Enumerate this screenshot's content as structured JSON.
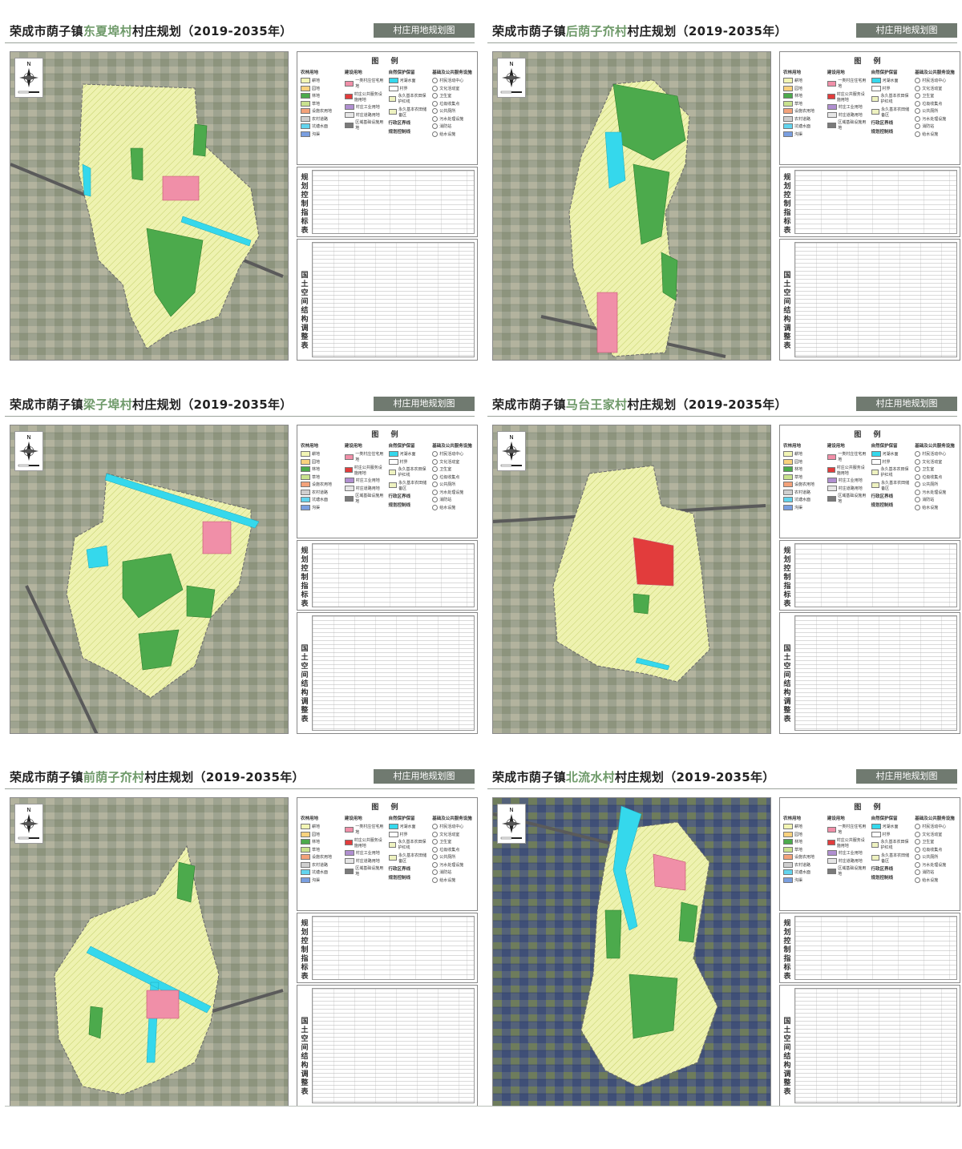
{
  "panels": [
    {
      "prefix": "荣成市荫子镇",
      "village": "东夏埠村",
      "suffix": "村庄规划（2019-2035年）",
      "badge": "村庄用地规划图"
    },
    {
      "prefix": "荣成市荫子镇",
      "village": "后荫子夼村",
      "suffix": "村庄规划（2019-2035年）",
      "badge": "村庄用地规划图"
    },
    {
      "prefix": "荣成市荫子镇",
      "village": "梁子埠村",
      "suffix": "村庄规划（2019-2035年）",
      "badge": "村庄用地规划图"
    },
    {
      "prefix": "荣成市荫子镇",
      "village": "马台王家村",
      "suffix": "村庄规划（2019-2035年）",
      "badge": "村庄用地规划图"
    },
    {
      "prefix": "荣成市荫子镇",
      "village": "前荫子夼村",
      "suffix": "村庄规划（2019-2035年）",
      "badge": "村庄用地规划图"
    },
    {
      "prefix": "荣成市荫子镇",
      "village": "北流水村",
      "suffix": "村庄规划（2019-2035年）",
      "badge": "村庄用地规划图"
    }
  ],
  "legend": {
    "title": "图 例",
    "col1_title": "农林用地",
    "col2_title": "建设用地",
    "col3_title": "自然保护保留",
    "col4_title": "基础及公共服务设施",
    "col3_sub1": "行政区界线",
    "col3_sub2": "规划控制线",
    "col1_items": [
      "耕地",
      "园地",
      "林地",
      "草地",
      "设施农用地",
      "农村道路",
      "坑塘水面",
      "沟渠"
    ],
    "col2_items": [
      "一类村庄住宅用地",
      "村庄公共服务设施用地",
      "村庄工业用地",
      "村庄道路用地",
      "区域基础设施用地"
    ],
    "col3_items": [
      "河湖水面",
      "村界",
      "永久基本农田保护红线",
      "永久基本农田储备区"
    ],
    "col4_items": [
      "村民活动中心",
      "文化活动室",
      "卫生室",
      "垃圾收集点",
      "公共厕所",
      "污水处理设施",
      "消防站",
      "给水设施"
    ],
    "colors": {
      "farmland": "#f2f5b4",
      "garden": "#f9d27e",
      "forest": "#4caa4c",
      "grass": "#c9e28e",
      "facility": "#f3a27a",
      "road": "#cfcfcf",
      "pond": "#62d4ee",
      "ditch": "#7a9fe0",
      "residential": "#f08fa8",
      "public": "#e23c3c",
      "industry": "#b08fd0",
      "village_road": "#e6e6e6",
      "infrastructure": "#7a7a7a",
      "water": "#35d8ec"
    }
  },
  "tables": {
    "indicator_label": "规划控制指标表",
    "structure_label": "国土空间结构调整表"
  },
  "compass_label": "N"
}
